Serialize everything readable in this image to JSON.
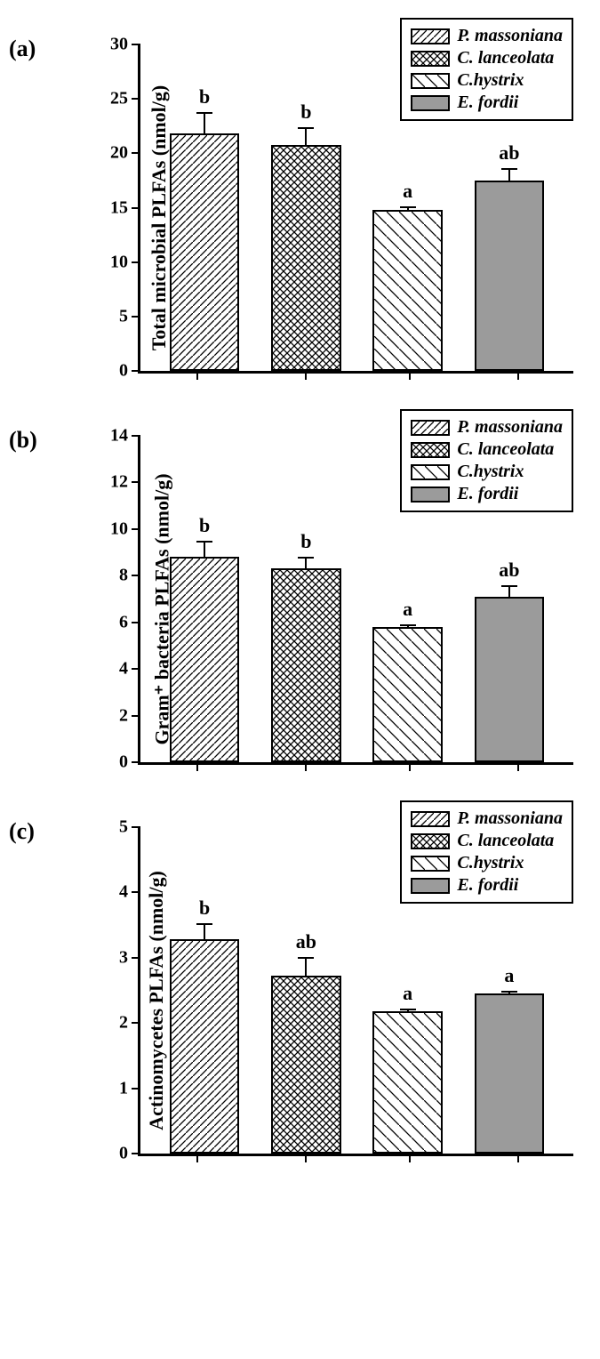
{
  "legend": {
    "items": [
      {
        "label": "P. massoniana",
        "pattern": "diag1"
      },
      {
        "label": "C. lanceolata",
        "pattern": "cross"
      },
      {
        "label": "C.hystrix",
        "pattern": "diag2"
      },
      {
        "label": "E. fordii",
        "pattern": "solid"
      }
    ]
  },
  "patterns": {
    "diag1": {
      "strokes": [
        [
          0,
          8,
          8,
          0
        ]
      ],
      "bg": "#ffffff",
      "stroke": "#000000",
      "w": 1.3,
      "size": 8
    },
    "cross": {
      "strokes": [
        [
          0,
          8,
          8,
          0
        ],
        [
          0,
          0,
          8,
          8
        ]
      ],
      "bg": "#ffffff",
      "stroke": "#000000",
      "w": 1.3,
      "size": 8
    },
    "diag2": {
      "strokes": [
        [
          0,
          0,
          14,
          14
        ]
      ],
      "bg": "#ffffff",
      "stroke": "#000000",
      "w": 1.3,
      "size": 14
    },
    "solid": {
      "strokes": [],
      "bg": "#9b9b9b",
      "stroke": "#000000",
      "w": 0,
      "size": 8
    }
  },
  "panels": [
    {
      "id": "a",
      "panel_label": "(a)",
      "y_title": "Total microbial PLFAs (nmol/g)",
      "ylim": [
        0,
        30
      ],
      "ytick_step": 5,
      "bars": [
        {
          "value": 21.8,
          "err": 2.2,
          "sig": "b",
          "pattern": "diag1"
        },
        {
          "value": 20.8,
          "err": 1.8,
          "sig": "b",
          "pattern": "cross"
        },
        {
          "value": 14.8,
          "err": 0.5,
          "sig": "a",
          "pattern": "diag2"
        },
        {
          "value": 17.5,
          "err": 1.3,
          "sig": "ab",
          "pattern": "solid"
        }
      ]
    },
    {
      "id": "b",
      "panel_label": "(b)",
      "y_title": "Gram⁺ bacteria PLFAs (nmol/g)",
      "ylim": [
        0,
        14
      ],
      "ytick_step": 2,
      "bars": [
        {
          "value": 8.8,
          "err": 0.8,
          "sig": "b",
          "pattern": "diag1"
        },
        {
          "value": 8.3,
          "err": 0.6,
          "sig": "b",
          "pattern": "cross"
        },
        {
          "value": 5.8,
          "err": 0.2,
          "sig": "a",
          "pattern": "diag2"
        },
        {
          "value": 7.1,
          "err": 0.6,
          "sig": "ab",
          "pattern": "solid"
        }
      ]
    },
    {
      "id": "c",
      "panel_label": "(c)",
      "y_title": "Actinomycetes PLFAs (nmol/g)",
      "ylim": [
        0,
        5
      ],
      "ytick_step": 1,
      "bars": [
        {
          "value": 3.28,
          "err": 0.28,
          "sig": "b",
          "pattern": "diag1"
        },
        {
          "value": 2.72,
          "err": 0.32,
          "sig": "ab",
          "pattern": "cross"
        },
        {
          "value": 2.18,
          "err": 0.07,
          "sig": "a",
          "pattern": "diag2"
        },
        {
          "value": 2.45,
          "err": 0.07,
          "sig": "a",
          "pattern": "solid"
        }
      ]
    }
  ],
  "style": {
    "bar_border": "#000000",
    "axis_color": "#000000",
    "sig_fontsize": 22,
    "axis_fontsize": 20,
    "ytitle_fontsize": 22,
    "legend_fontsize": 20,
    "panel_label_fontsize": 26
  }
}
